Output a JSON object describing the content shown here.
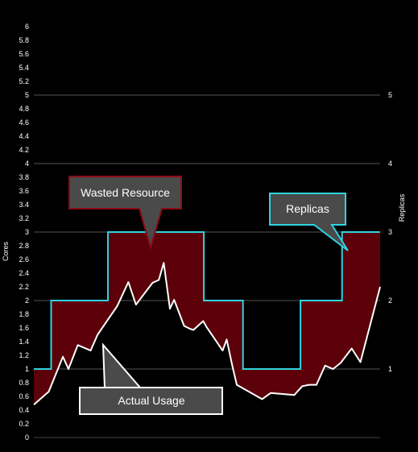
{
  "chart_data": {
    "type": "area",
    "title": "",
    "ylabel_left": "Cores",
    "ylabel_right": "Replicas",
    "ylim_left": [
      0,
      6
    ],
    "ylim_right": [
      0,
      6
    ],
    "left_ticks": [
      "0",
      "0.2",
      "0.4",
      "0.6",
      "0.8",
      "1",
      "1.2",
      "1.4",
      "1.6",
      "1.8",
      "2",
      "2.2",
      "2.4",
      "2.6",
      "2.8",
      "3",
      "3.2",
      "3.4",
      "3.6",
      "3.8",
      "4",
      "4.2",
      "4.4",
      "4.6",
      "4.8",
      "5",
      "5.2",
      "5.4",
      "5.6",
      "5.8",
      "6"
    ],
    "right_ticks": [
      "1",
      "2",
      "3",
      "4",
      "5"
    ],
    "gridlines_at": [
      1,
      2,
      3,
      4,
      5
    ],
    "xlim": [
      0,
      100
    ],
    "series": [
      {
        "name": "Replicas",
        "color": "#2fd3e0",
        "shape": "step",
        "x": [
          0,
          5,
          5,
          21.4,
          21.4,
          49.1,
          49.1,
          60.4,
          60.4,
          77,
          77,
          89,
          89,
          100
        ],
        "y": [
          1,
          1,
          2,
          2,
          3,
          3,
          2,
          2,
          1,
          1,
          2,
          2,
          3,
          3
        ]
      },
      {
        "name": "Actual Usage",
        "color": "#ffffff",
        "x": [
          0,
          4.3,
          8.4,
          10,
          12.7,
          16.4,
          18.4,
          24.1,
          27.3,
          29.5,
          34.3,
          36.1,
          37.5,
          38.4,
          39.3,
          40.5,
          43.4,
          45,
          46.1,
          48.9,
          49.8,
          54.5,
          55.7,
          57.3,
          58.6,
          65.9,
          68.4,
          75.2,
          77.5,
          79.5,
          81.6,
          84.1,
          86.4,
          88.6,
          91.8,
          94.3,
          100
        ],
        "y": [
          0.48,
          0.67,
          1.18,
          1.0,
          1.35,
          1.27,
          1.5,
          1.92,
          2.27,
          1.94,
          2.26,
          2.3,
          2.55,
          2.22,
          1.88,
          2.01,
          1.63,
          1.59,
          1.57,
          1.7,
          1.62,
          1.27,
          1.43,
          1.05,
          0.77,
          0.56,
          0.65,
          0.62,
          0.75,
          0.77,
          0.77,
          1.05,
          1.0,
          1.09,
          1.3,
          1.1,
          2.2
        ]
      }
    ],
    "fill_color": "#5c0009",
    "annotations": [
      {
        "text": "Wasted Resource",
        "border": "#8b0b16"
      },
      {
        "text": "Replicas",
        "border": "#2fd3e0"
      },
      {
        "text": "Actual Usage",
        "border": "#ffffff"
      }
    ]
  }
}
